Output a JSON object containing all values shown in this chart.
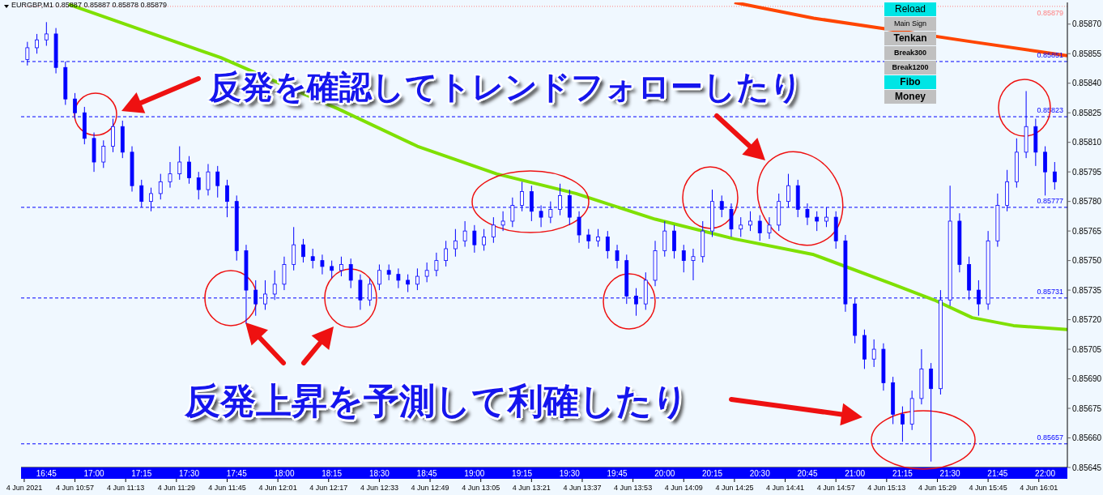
{
  "chart_data": {
    "type": "candlestick",
    "title": "EURGBP,M1  0.85887 0.85887 0.85878 0.85879",
    "annotations": [
      "反発を確認してトレンドフォローしたり",
      "反発上昇を予測して利確したり",
      "Reload",
      "Main Sign",
      "Tenkan",
      "Break300",
      "Break1200",
      "Fibo",
      "Money"
    ],
    "xlim": [
      "2021-06-04T10:40",
      "2021-06-04T16:10"
    ],
    "xticks": [
      {
        "value": "2021-06-04T10:41",
        "label": "4 Jun 2021"
      },
      {
        "value": "2021-06-04T10:57",
        "label": "4 Jun 10:57"
      },
      {
        "value": "2021-06-04T11:13",
        "label": "4 Jun 11:13"
      },
      {
        "value": "2021-06-04T11:29",
        "label": "4 Jun 11:29"
      },
      {
        "value": "2021-06-04T11:45",
        "label": "4 Jun 11:45"
      },
      {
        "value": "2021-06-04T12:01",
        "label": "4 Jun 12:01"
      },
      {
        "value": "2021-06-04T12:17",
        "label": "4 Jun 12:17"
      },
      {
        "value": "2021-06-04T12:33",
        "label": "4 Jun 12:33"
      },
      {
        "value": "2021-06-04T12:49",
        "label": "4 Jun 12:49"
      },
      {
        "value": "2021-06-04T13:05",
        "label": "4 Jun 13:05"
      },
      {
        "value": "2021-06-04T13:21",
        "label": "4 Jun 13:21"
      },
      {
        "value": "2021-06-04T13:37",
        "label": "4 Jun 13:37"
      },
      {
        "value": "2021-06-04T13:53",
        "label": "4 Jun 13:53"
      },
      {
        "value": "2021-06-04T14:09",
        "label": "4 Jun 14:09"
      },
      {
        "value": "2021-06-04T14:25",
        "label": "4 Jun 14:25"
      },
      {
        "value": "2021-06-04T14:41",
        "label": "4 Jun 14:41"
      },
      {
        "value": "2021-06-04T14:57",
        "label": "4 Jun 14:57"
      },
      {
        "value": "2021-06-04T15:13",
        "label": "4 Jun 15:13"
      },
      {
        "value": "2021-06-04T15:29",
        "label": "4 Jun 15:29"
      },
      {
        "value": "2021-06-04T15:45",
        "label": "4 Jun 15:45"
      },
      {
        "value": "2021-06-04T16:01",
        "label": "4 Jun 16:01"
      }
    ],
    "x2lim": [
      "2021-06-04T16:37",
      "2021-06-04T22:07"
    ],
    "x2ticks": [
      {
        "value": "2021-06-04T16:45",
        "label": "16:45"
      },
      {
        "value": "2021-06-04T17:00",
        "label": "17:00"
      },
      {
        "value": "2021-06-04T17:15",
        "label": "17:15"
      },
      {
        "value": "2021-06-04T17:30",
        "label": "17:30"
      },
      {
        "value": "2021-06-04T17:45",
        "label": "17:45"
      },
      {
        "value": "2021-06-04T18:00",
        "label": "18:00"
      },
      {
        "value": "2021-06-04T18:15",
        "label": "18:15"
      },
      {
        "value": "2021-06-04T18:30",
        "label": "18:30"
      },
      {
        "value": "2021-06-04T18:45",
        "label": "18:45"
      },
      {
        "value": "2021-06-04T19:00",
        "label": "19:00"
      },
      {
        "value": "2021-06-04T19:15",
        "label": "19:15"
      },
      {
        "value": "2021-06-04T19:30",
        "label": "19:30"
      },
      {
        "value": "2021-06-04T19:45",
        "label": "19:45"
      },
      {
        "value": "2021-06-04T20:00",
        "label": "20:00"
      },
      {
        "value": "2021-06-04T20:15",
        "label": "20:15"
      },
      {
        "value": "2021-06-04T20:30",
        "label": "20:30"
      },
      {
        "value": "2021-06-04T20:45",
        "label": "20:45"
      },
      {
        "value": "2021-06-04T21:00",
        "label": "21:00"
      },
      {
        "value": "2021-06-04T21:15",
        "label": "21:15"
      },
      {
        "value": "2021-06-04T21:30",
        "label": "21:30"
      },
      {
        "value": "2021-06-04T21:45",
        "label": "21:45"
      },
      {
        "value": "2021-06-04T22:00",
        "label": "22:00"
      }
    ],
    "ylim": [
      0.85645,
      0.85881
    ],
    "yticks": [
      0.85645,
      {
        "value": 0.8566,
        "label": "0.85660"
      },
      0.85675,
      {
        "value": 0.8569,
        "label": "0.85690"
      },
      0.85705,
      {
        "value": 0.8572,
        "label": "0.85720"
      },
      0.85735,
      {
        "value": 0.8575,
        "label": "0.85750"
      },
      0.85765,
      {
        "value": 0.8578,
        "label": "0.85780"
      },
      0.85795,
      {
        "value": 0.8581,
        "label": "0.85810"
      },
      0.85825,
      {
        "value": 0.8584,
        "label": "0.85840"
      },
      0.85855,
      {
        "value": 0.8587,
        "label": "0.85870"
      }
    ],
    "ref_lines": [
      {
        "axis": "y",
        "value": 0.85879,
        "label": "0.85879",
        "color": "#ff8080",
        "line_style": "dotted"
      },
      {
        "axis": "y",
        "value": 0.85851,
        "label": "0.85851",
        "color": "#0000ff",
        "line_style": "dashed"
      },
      {
        "axis": "y",
        "value": 0.85823,
        "label": "0.85823",
        "color": "#0000ff",
        "line_style": "dashed"
      },
      {
        "axis": "y",
        "value": 0.85777,
        "label": "0.85777",
        "color": "#0000ff",
        "line_style": "dashed"
      },
      {
        "axis": "y",
        "value": 0.85731,
        "label": "0.85731",
        "color": "#0000ff",
        "line_style": "dashed"
      },
      {
        "axis": "y",
        "value": 0.85657,
        "label": "0.85657",
        "color": "#0000ff",
        "line_style": "dashed"
      }
    ],
    "series": [
      {
        "type": "candlestick",
        "color": "#0000ff",
        "x": [
          "2021-06-04T10:42",
          "2021-06-04T10:45",
          "2021-06-04T10:48",
          "2021-06-04T10:51",
          "2021-06-04T10:54",
          "2021-06-04T10:57",
          "2021-06-04T11:00",
          "2021-06-04T11:03",
          "2021-06-04T11:06",
          "2021-06-04T11:09",
          "2021-06-04T11:12",
          "2021-06-04T11:15",
          "2021-06-04T11:18",
          "2021-06-04T11:21",
          "2021-06-04T11:24",
          "2021-06-04T11:27",
          "2021-06-04T11:30",
          "2021-06-04T11:33",
          "2021-06-04T11:36",
          "2021-06-04T11:39",
          "2021-06-04T11:42",
          "2021-06-04T11:45",
          "2021-06-04T11:48",
          "2021-06-04T11:51",
          "2021-06-04T11:54",
          "2021-06-04T11:57",
          "2021-06-04T12:00",
          "2021-06-04T12:03",
          "2021-06-04T12:06",
          "2021-06-04T12:09",
          "2021-06-04T12:12",
          "2021-06-04T12:15",
          "2021-06-04T12:18",
          "2021-06-04T12:21",
          "2021-06-04T12:24",
          "2021-06-04T12:27",
          "2021-06-04T12:30",
          "2021-06-04T12:33",
          "2021-06-04T12:36",
          "2021-06-04T12:39",
          "2021-06-04T12:42",
          "2021-06-04T12:45",
          "2021-06-04T12:48",
          "2021-06-04T12:51",
          "2021-06-04T12:54",
          "2021-06-04T12:57",
          "2021-06-04T13:00",
          "2021-06-04T13:03",
          "2021-06-04T13:06",
          "2021-06-04T13:09",
          "2021-06-04T13:12",
          "2021-06-04T13:15",
          "2021-06-04T13:18",
          "2021-06-04T13:21",
          "2021-06-04T13:24",
          "2021-06-04T13:27",
          "2021-06-04T13:30",
          "2021-06-04T13:33",
          "2021-06-04T13:36",
          "2021-06-04T13:39",
          "2021-06-04T13:42",
          "2021-06-04T13:45",
          "2021-06-04T13:48",
          "2021-06-04T13:51",
          "2021-06-04T13:54",
          "2021-06-04T13:57",
          "2021-06-04T14:00",
          "2021-06-04T14:03",
          "2021-06-04T14:06",
          "2021-06-04T14:09",
          "2021-06-04T14:12",
          "2021-06-04T14:15",
          "2021-06-04T14:18",
          "2021-06-04T14:21",
          "2021-06-04T14:24",
          "2021-06-04T14:27",
          "2021-06-04T14:30",
          "2021-06-04T14:33",
          "2021-06-04T14:36",
          "2021-06-04T14:39",
          "2021-06-04T14:42",
          "2021-06-04T14:45",
          "2021-06-04T14:48",
          "2021-06-04T14:51",
          "2021-06-04T14:54",
          "2021-06-04T14:57",
          "2021-06-04T15:00",
          "2021-06-04T15:03",
          "2021-06-04T15:06",
          "2021-06-04T15:09",
          "2021-06-04T15:12",
          "2021-06-04T15:15",
          "2021-06-04T15:18",
          "2021-06-04T15:21",
          "2021-06-04T15:24",
          "2021-06-04T15:27",
          "2021-06-04T15:30",
          "2021-06-04T15:33",
          "2021-06-04T15:36",
          "2021-06-04T15:39",
          "2021-06-04T15:42",
          "2021-06-04T15:45",
          "2021-06-04T15:48",
          "2021-06-04T15:51",
          "2021-06-04T15:54",
          "2021-06-04T15:57",
          "2021-06-04T16:00",
          "2021-06-04T16:03",
          "2021-06-04T16:06"
        ],
        "ohlc": [
          [
            0.85852,
            0.85861,
            0.85849,
            0.85858
          ],
          [
            0.85858,
            0.85865,
            0.85855,
            0.85862
          ],
          [
            0.85862,
            0.85871,
            0.85859,
            0.85865
          ],
          [
            0.85865,
            0.85868,
            0.85845,
            0.85848
          ],
          [
            0.85848,
            0.85851,
            0.85829,
            0.85832
          ],
          [
            0.85832,
            0.85835,
            0.85822,
            0.85825
          ],
          [
            0.85825,
            0.85828,
            0.85809,
            0.85812
          ],
          [
            0.85812,
            0.85815,
            0.85795,
            0.858
          ],
          [
            0.858,
            0.85811,
            0.85797,
            0.85808
          ],
          [
            0.85808,
            0.85822,
            0.85805,
            0.85818
          ],
          [
            0.85818,
            0.85821,
            0.85802,
            0.85805
          ],
          [
            0.85805,
            0.85808,
            0.85785,
            0.85788
          ],
          [
            0.85788,
            0.85791,
            0.85777,
            0.8578
          ],
          [
            0.8578,
            0.85787,
            0.85775,
            0.85784
          ],
          [
            0.85784,
            0.85794,
            0.85781,
            0.8579
          ],
          [
            0.8579,
            0.858,
            0.85787,
            0.85794
          ],
          [
            0.85794,
            0.85808,
            0.85791,
            0.858
          ],
          [
            0.858,
            0.85803,
            0.85789,
            0.85792
          ],
          [
            0.85792,
            0.85795,
            0.85781,
            0.85786
          ],
          [
            0.85786,
            0.85799,
            0.85783,
            0.85795
          ],
          [
            0.85795,
            0.85798,
            0.85782,
            0.85788
          ],
          [
            0.85788,
            0.85791,
            0.85772,
            0.8578
          ],
          [
            0.8578,
            0.85783,
            0.8575,
            0.85755
          ],
          [
            0.85755,
            0.85758,
            0.85718,
            0.85735
          ],
          [
            0.85735,
            0.8574,
            0.85722,
            0.85728
          ],
          [
            0.85728,
            0.8574,
            0.85725,
            0.85733
          ],
          [
            0.85733,
            0.85745,
            0.8573,
            0.85738
          ],
          [
            0.85738,
            0.85752,
            0.85735,
            0.85748
          ],
          [
            0.85748,
            0.85767,
            0.85745,
            0.85758
          ],
          [
            0.85758,
            0.85761,
            0.85749,
            0.85752
          ],
          [
            0.85752,
            0.85756,
            0.85746,
            0.8575
          ],
          [
            0.8575,
            0.85753,
            0.85743,
            0.85747
          ],
          [
            0.85747,
            0.8575,
            0.85741,
            0.85745
          ],
          [
            0.85745,
            0.85752,
            0.85742,
            0.85748
          ],
          [
            0.85748,
            0.85751,
            0.85736,
            0.8574
          ],
          [
            0.8574,
            0.85743,
            0.85725,
            0.8573
          ],
          [
            0.8573,
            0.85741,
            0.85727,
            0.85738
          ],
          [
            0.85738,
            0.85748,
            0.85735,
            0.85745
          ],
          [
            0.85745,
            0.85748,
            0.8574,
            0.85743
          ],
          [
            0.85743,
            0.85746,
            0.85736,
            0.8574
          ],
          [
            0.8574,
            0.85743,
            0.85734,
            0.85738
          ],
          [
            0.85738,
            0.85746,
            0.85735,
            0.85742
          ],
          [
            0.85742,
            0.85749,
            0.85739,
            0.85745
          ],
          [
            0.85745,
            0.85754,
            0.85742,
            0.8575
          ],
          [
            0.8575,
            0.8576,
            0.85747,
            0.85756
          ],
          [
            0.85756,
            0.85766,
            0.85752,
            0.8576
          ],
          [
            0.8576,
            0.8577,
            0.85757,
            0.85765
          ],
          [
            0.85765,
            0.85768,
            0.85754,
            0.85758
          ],
          [
            0.85758,
            0.85766,
            0.85755,
            0.85762
          ],
          [
            0.85762,
            0.85772,
            0.85759,
            0.85768
          ],
          [
            0.85768,
            0.85775,
            0.85765,
            0.8577
          ],
          [
            0.8577,
            0.85782,
            0.85767,
            0.85778
          ],
          [
            0.85778,
            0.8579,
            0.85775,
            0.85785
          ],
          [
            0.85785,
            0.85788,
            0.8577,
            0.85775
          ],
          [
            0.85775,
            0.85778,
            0.85767,
            0.85772
          ],
          [
            0.85772,
            0.8578,
            0.85769,
            0.85776
          ],
          [
            0.85776,
            0.85789,
            0.85773,
            0.85783
          ],
          [
            0.85783,
            0.85786,
            0.85768,
            0.85772
          ],
          [
            0.85772,
            0.85775,
            0.85759,
            0.85763
          ],
          [
            0.85763,
            0.85766,
            0.85756,
            0.8576
          ],
          [
            0.8576,
            0.85766,
            0.85757,
            0.85762
          ],
          [
            0.85762,
            0.85765,
            0.85751,
            0.85755
          ],
          [
            0.85755,
            0.85758,
            0.85746,
            0.8575
          ],
          [
            0.8575,
            0.85753,
            0.85728,
            0.85732
          ],
          [
            0.85732,
            0.85736,
            0.85722,
            0.85728
          ],
          [
            0.85728,
            0.85744,
            0.85725,
            0.8574
          ],
          [
            0.8574,
            0.8576,
            0.85737,
            0.85755
          ],
          [
            0.85755,
            0.8577,
            0.85752,
            0.85765
          ],
          [
            0.85765,
            0.85768,
            0.85751,
            0.85755
          ],
          [
            0.85755,
            0.85758,
            0.85744,
            0.8575
          ],
          [
            0.8575,
            0.85756,
            0.8574,
            0.85752
          ],
          [
            0.85752,
            0.8577,
            0.85749,
            0.85765
          ],
          [
            0.85765,
            0.85786,
            0.85762,
            0.8578
          ],
          [
            0.8578,
            0.85783,
            0.85772,
            0.85776
          ],
          [
            0.85776,
            0.85779,
            0.85762,
            0.85766
          ],
          [
            0.85766,
            0.85772,
            0.85762,
            0.85768
          ],
          [
            0.85768,
            0.85775,
            0.85765,
            0.8577
          ],
          [
            0.8577,
            0.85773,
            0.8576,
            0.85764
          ],
          [
            0.85764,
            0.85772,
            0.85761,
            0.85768
          ],
          [
            0.85768,
            0.85784,
            0.85765,
            0.8578
          ],
          [
            0.8578,
            0.85794,
            0.85777,
            0.85788
          ],
          [
            0.85788,
            0.85791,
            0.85772,
            0.85776
          ],
          [
            0.85776,
            0.85779,
            0.85768,
            0.85772
          ],
          [
            0.85772,
            0.85775,
            0.85765,
            0.8577
          ],
          [
            0.8577,
            0.85777,
            0.85767,
            0.85772
          ],
          [
            0.85772,
            0.85775,
            0.85756,
            0.8576
          ],
          [
            0.8576,
            0.85763,
            0.85724,
            0.85728
          ],
          [
            0.85728,
            0.85731,
            0.85708,
            0.85712
          ],
          [
            0.85712,
            0.85715,
            0.85695,
            0.857
          ],
          [
            0.857,
            0.8571,
            0.85696,
            0.85705
          ],
          [
            0.85705,
            0.85708,
            0.85684,
            0.85688
          ],
          [
            0.85688,
            0.85691,
            0.85667,
            0.85672
          ],
          [
            0.85672,
            0.85676,
            0.85658,
            0.85667
          ],
          [
            0.85667,
            0.85684,
            0.85664,
            0.8568
          ],
          [
            0.8568,
            0.85705,
            0.85677,
            0.85695
          ],
          [
            0.85695,
            0.85698,
            0.85648,
            0.85685
          ],
          [
            0.85685,
            0.85735,
            0.85682,
            0.8573
          ],
          [
            0.8573,
            0.85788,
            0.85727,
            0.8577
          ],
          [
            0.8577,
            0.85774,
            0.85744,
            0.85748
          ],
          [
            0.85748,
            0.85752,
            0.8573,
            0.85735
          ],
          [
            0.85735,
            0.8574,
            0.85722,
            0.85728
          ],
          [
            0.85728,
            0.85765,
            0.85725,
            0.8576
          ],
          [
            0.8576,
            0.85784,
            0.85757,
            0.85778
          ],
          [
            0.85778,
            0.85796,
            0.85775,
            0.8579
          ],
          [
            0.8579,
            0.85812,
            0.85787,
            0.85805
          ],
          [
            0.85805,
            0.85836,
            0.85802,
            0.85818
          ],
          [
            0.85818,
            0.85822,
            0.85798,
            0.85805
          ],
          [
            0.85805,
            0.85808,
            0.85783,
            0.85795
          ],
          [
            0.85795,
            0.858,
            0.85786,
            0.8579
          ]
        ]
      },
      {
        "type": "line",
        "color": "#7fe000",
        "x": [
          "2021-06-04T10:55",
          "2021-06-04T11:43",
          "2021-06-04T12:20",
          "2021-06-04T12:45",
          "2021-06-04T13:10",
          "2021-06-04T13:35",
          "2021-06-04T14:00",
          "2021-06-04T14:25",
          "2021-06-04T14:50",
          "2021-06-04T15:15",
          "2021-06-04T15:28",
          "2021-06-04T15:40",
          "2021-06-04T15:53",
          "2021-06-04T16:10"
        ],
        "values": [
          0.8588,
          0.85853,
          0.85827,
          0.85808,
          0.85794,
          0.85784,
          0.85771,
          0.85761,
          0.85753,
          0.85738,
          0.8573,
          0.85721,
          0.85717,
          0.85715
        ]
      },
      {
        "type": "line",
        "color": "#ff4500",
        "x": [
          "2021-06-04T14:25",
          "2021-06-04T14:50",
          "2021-06-04T15:15",
          "2021-06-04T15:40",
          "2021-06-04T16:10"
        ],
        "values": [
          0.85881,
          0.85873,
          0.85867,
          0.85861,
          0.85854
        ]
      }
    ]
  }
}
